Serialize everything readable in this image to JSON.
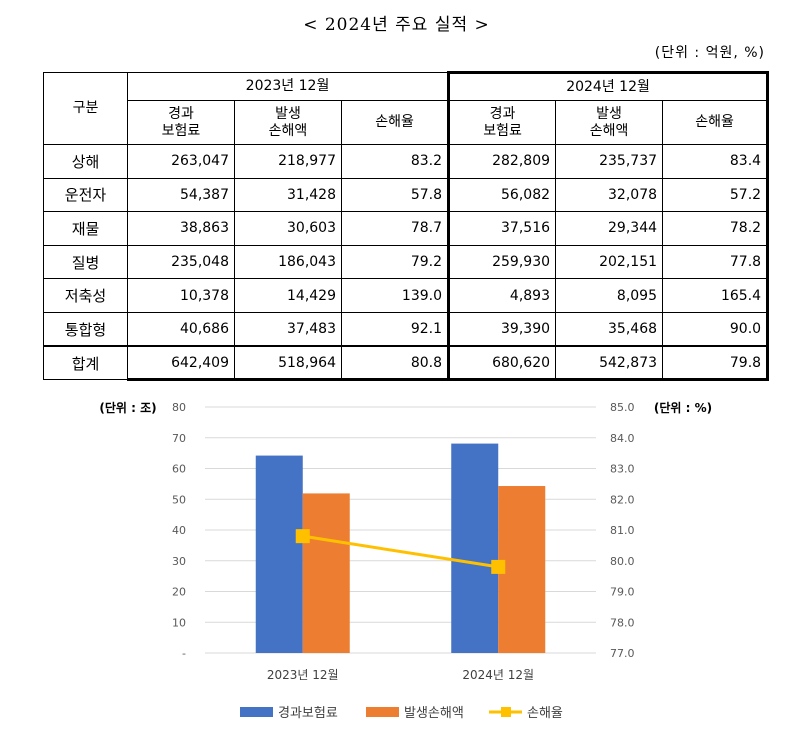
{
  "title": "< 2024년 주요 실적 >",
  "unit": "(단위 : 억원, %)",
  "table": {
    "row_header": "구분",
    "periods": [
      "2023년 12월",
      "2024년 12월"
    ],
    "columns": [
      [
        "경과",
        "보험료"
      ],
      [
        "발생",
        "손해액"
      ],
      [
        "손해율"
      ]
    ],
    "rows": [
      {
        "label": "상해",
        "values": [
          "263,047",
          "218,977",
          "83.2",
          "282,809",
          "235,737",
          "83.4"
        ]
      },
      {
        "label": "운전자",
        "values": [
          "54,387",
          "31,428",
          "57.8",
          "56,082",
          "32,078",
          "57.2"
        ]
      },
      {
        "label": "재물",
        "values": [
          "38,863",
          "30,603",
          "78.7",
          "37,516",
          "29,344",
          "78.2"
        ]
      },
      {
        "label": "질병",
        "values": [
          "235,048",
          "186,043",
          "79.2",
          "259,930",
          "202,151",
          "77.8"
        ]
      },
      {
        "label": "저축성",
        "values": [
          "10,378",
          "14,429",
          "139.0",
          "4,893",
          "8,095",
          "165.4"
        ]
      },
      {
        "label": "통합형",
        "values": [
          "40,686",
          "37,483",
          "92.1",
          "39,390",
          "35,468",
          "90.0"
        ]
      },
      {
        "label": "합계",
        "values": [
          "642,409",
          "518,964",
          "80.8",
          "680,620",
          "542,873",
          "79.8"
        ]
      }
    ]
  },
  "chart_data": {
    "type": "bar",
    "categories": [
      "2023년 12월",
      "2024년 12월"
    ],
    "series": [
      {
        "name": "경과보험료",
        "kind": "bar",
        "axis": "left",
        "color": "#4472C4",
        "values": [
          64.2,
          68.1
        ]
      },
      {
        "name": "발생손해액",
        "kind": "bar",
        "axis": "right-none",
        "color": "#ED7D31",
        "values": [
          51.9,
          54.3
        ]
      },
      {
        "name": "손해율",
        "kind": "line",
        "axis": "right",
        "color": "#FFC000",
        "values": [
          80.8,
          79.8
        ]
      }
    ],
    "left_axis": {
      "label": "(단위 : 조)",
      "ylim": [
        0,
        80
      ],
      "ticks": [
        "-",
        "10",
        "20",
        "30",
        "40",
        "50",
        "60",
        "70",
        "80"
      ]
    },
    "right_axis": {
      "label": "(단위 : %)",
      "ylim": [
        77,
        85
      ],
      "ticks": [
        "77.0",
        "78.0",
        "79.0",
        "80.0",
        "81.0",
        "82.0",
        "83.0",
        "84.0",
        "85.0"
      ]
    },
    "grid": true,
    "legend_position": "bottom"
  }
}
